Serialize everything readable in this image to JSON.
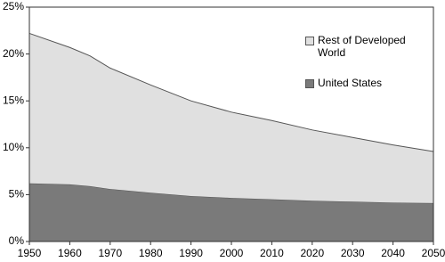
{
  "chart_data": {
    "type": "stacked-area",
    "x": [
      1950,
      1960,
      1965,
      1970,
      1980,
      1990,
      2000,
      2010,
      2020,
      2030,
      2040,
      2050
    ],
    "series": [
      {
        "name": "United States",
        "color": "#7a7a7a",
        "values": [
          6.2,
          6.1,
          5.9,
          5.6,
          5.2,
          4.85,
          4.65,
          4.5,
          4.35,
          4.25,
          4.15,
          4.1
        ]
      },
      {
        "name": "Rest of Developed World",
        "color": "#e0e0e0",
        "values": [
          16.0,
          14.6,
          13.9,
          12.9,
          11.5,
          10.15,
          9.15,
          8.4,
          7.55,
          6.85,
          6.15,
          5.5
        ]
      }
    ],
    "xlim": [
      1950,
      2050
    ],
    "xticks": [
      1950,
      1960,
      1970,
      1980,
      1990,
      2000,
      2010,
      2020,
      2030,
      2040,
      2050
    ],
    "ylim": [
      0,
      25
    ],
    "yticks": [
      {
        "value": 0,
        "label": "0%"
      },
      {
        "value": 5,
        "label": "5%"
      },
      {
        "value": 10,
        "label": "10%"
      },
      {
        "value": 15,
        "label": "15%"
      },
      {
        "value": 20,
        "label": "20%"
      },
      {
        "value": 25,
        "label": "25%"
      }
    ]
  }
}
